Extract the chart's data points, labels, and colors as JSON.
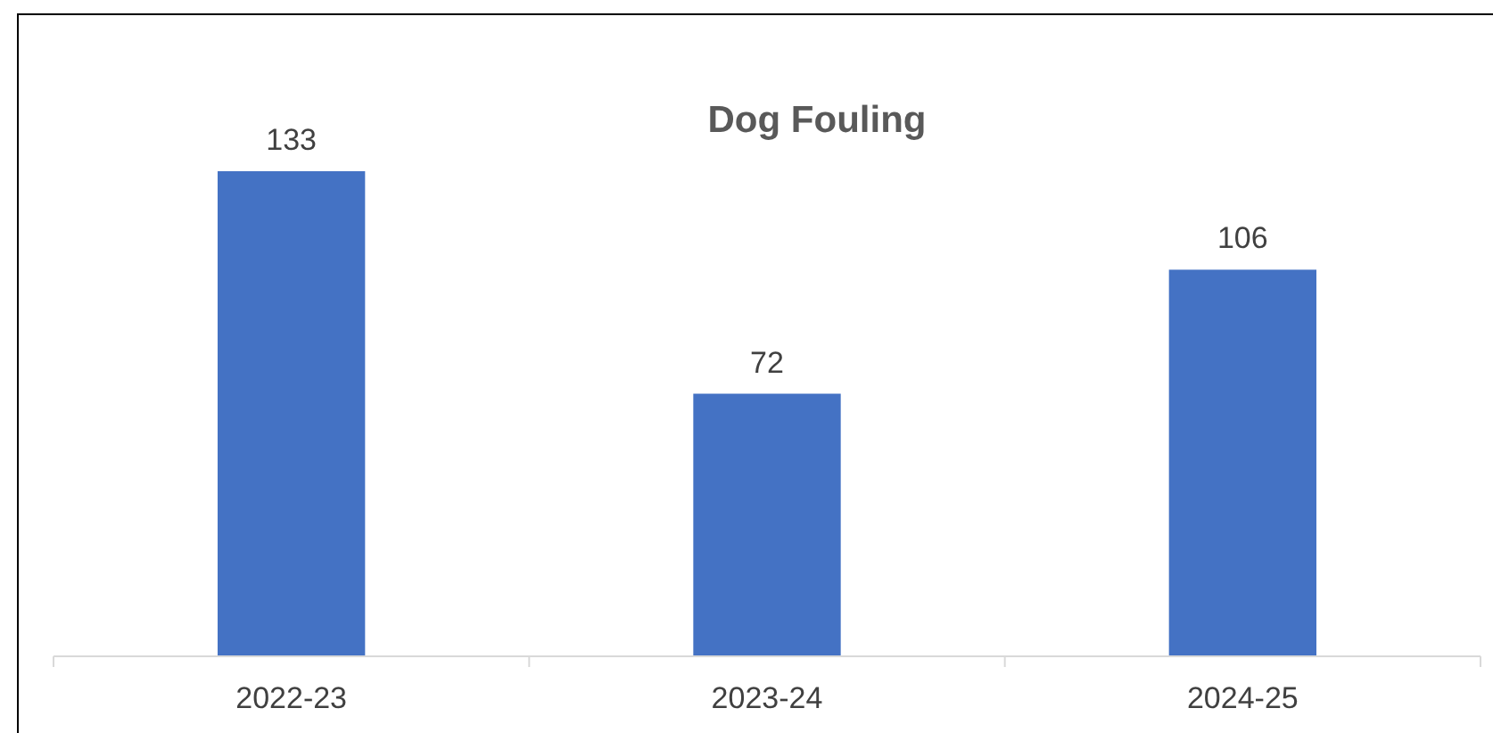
{
  "chart_data": {
    "type": "bar",
    "title": "Dog Fouling",
    "categories": [
      "2022-23",
      "2023-24",
      "2024-25"
    ],
    "values": [
      133,
      72,
      106
    ],
    "color": "#4472c4",
    "data_labels": true
  }
}
